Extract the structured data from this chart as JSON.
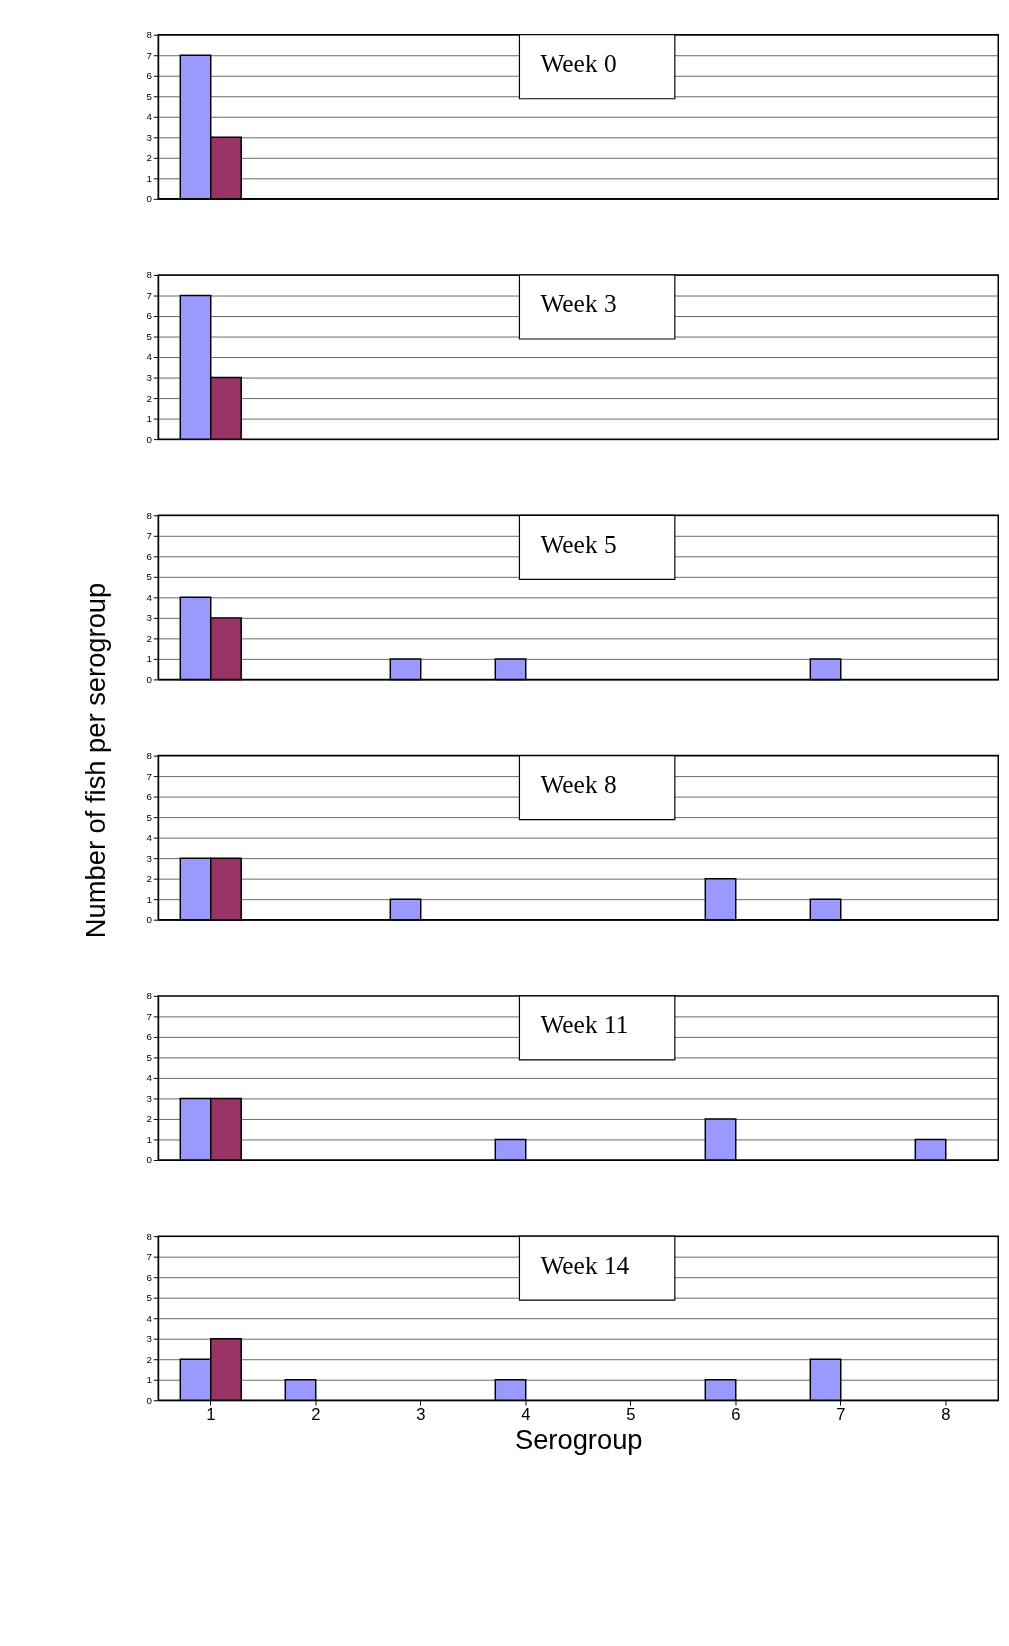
{
  "chart_data": [
    {
      "type": "bar",
      "title": "Week 0",
      "categories": [
        "1",
        "2",
        "3",
        "4",
        "5",
        "6",
        "7",
        "8"
      ],
      "ylim": [
        0,
        8
      ],
      "yticks": [
        0,
        1,
        2,
        3,
        4,
        5,
        6,
        7,
        8
      ],
      "grid": "y",
      "tick_labels": "y",
      "series": [
        {
          "color": "#9999ff",
          "values": [
            7,
            null,
            null,
            null,
            null,
            null,
            null,
            null
          ]
        },
        {
          "color": "#993366",
          "values": [
            3,
            null,
            null,
            null,
            null,
            null,
            null,
            null
          ]
        }
      ]
    },
    {
      "type": "bar",
      "title": "Week 3",
      "categories": [
        "1",
        "2",
        "3",
        "4",
        "5",
        "6",
        "7",
        "8"
      ],
      "ylim": [
        0,
        8
      ],
      "yticks": [
        0,
        1,
        2,
        3,
        4,
        5,
        6,
        7,
        8
      ],
      "grid": "y",
      "tick_labels": "y",
      "series": [
        {
          "color": "#9999ff",
          "values": [
            7,
            null,
            null,
            null,
            null,
            null,
            null,
            null
          ]
        },
        {
          "color": "#993366",
          "values": [
            3,
            null,
            null,
            null,
            null,
            null,
            null,
            null
          ]
        }
      ]
    },
    {
      "type": "bar",
      "title": "Week 5",
      "categories": [
        "1",
        "2",
        "3",
        "4",
        "5",
        "6",
        "7",
        "8"
      ],
      "ylim": [
        0,
        8
      ],
      "yticks": [
        0,
        1,
        2,
        3,
        4,
        5,
        6,
        7,
        8
      ],
      "grid": "y",
      "tick_labels": "y",
      "series": [
        {
          "color": "#9999ff",
          "values": [
            4,
            null,
            1,
            1,
            null,
            null,
            1,
            null
          ]
        },
        {
          "color": "#993366",
          "values": [
            3,
            null,
            null,
            null,
            null,
            null,
            null,
            null
          ]
        }
      ]
    },
    {
      "type": "bar",
      "title": "Week 8",
      "ylabel": "Number of fish per serogroup",
      "categories": [
        "1",
        "2",
        "3",
        "4",
        "5",
        "6",
        "7",
        "8"
      ],
      "ylim": [
        0,
        8
      ],
      "yticks": [
        0,
        1,
        2,
        3,
        4,
        5,
        6,
        7,
        8
      ],
      "grid": "y",
      "tick_labels": "y",
      "series": [
        {
          "color": "#9999ff",
          "values": [
            3,
            null,
            1,
            null,
            null,
            2,
            1,
            null
          ]
        },
        {
          "color": "#993366",
          "values": [
            3,
            null,
            null,
            null,
            null,
            null,
            null,
            null
          ]
        }
      ]
    },
    {
      "type": "bar",
      "title": "Week 11",
      "categories": [
        "1",
        "2",
        "3",
        "4",
        "5",
        "6",
        "7",
        "8"
      ],
      "ylim": [
        0,
        8
      ],
      "yticks": [
        0,
        1,
        2,
        3,
        4,
        5,
        6,
        7,
        8
      ],
      "grid": "y",
      "tick_labels": "y",
      "series": [
        {
          "color": "#9999ff",
          "values": [
            3,
            null,
            null,
            1,
            null,
            2,
            null,
            1
          ]
        },
        {
          "color": "#993366",
          "values": [
            3,
            null,
            null,
            null,
            null,
            null,
            null,
            null
          ]
        }
      ]
    },
    {
      "type": "bar",
      "title": "Week 14",
      "xlabel": "Serogroup",
      "categories": [
        "1",
        "2",
        "3",
        "4",
        "5",
        "6",
        "7",
        "8"
      ],
      "ylim": [
        0,
        8
      ],
      "yticks": [
        0,
        1,
        2,
        3,
        4,
        5,
        6,
        7,
        8
      ],
      "grid": "y",
      "series": [
        {
          "color": "#9999ff",
          "values": [
            2,
            1,
            null,
            1,
            null,
            1,
            2,
            null
          ]
        },
        {
          "color": "#993366",
          "values": [
            3,
            null,
            null,
            null,
            null,
            null,
            null,
            null
          ]
        }
      ]
    }
  ]
}
